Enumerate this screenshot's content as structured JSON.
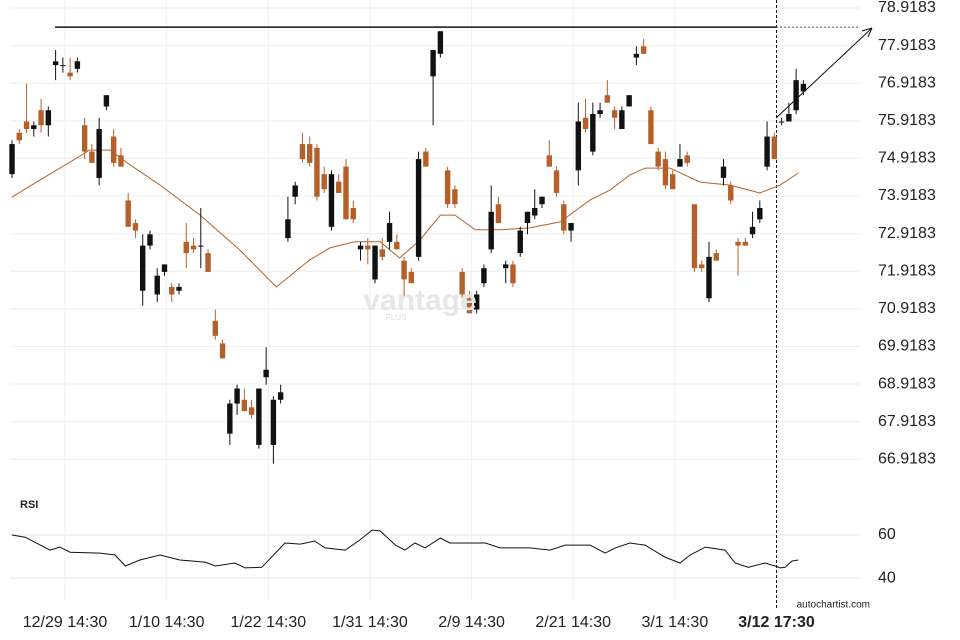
{
  "chart_data": {
    "type": "candlestick",
    "up_color": "#111111",
    "down_color": "#b5602a",
    "grid": true,
    "xlim": [
      -0.28,
      116.8
    ],
    "ylim": [
      65.915,
      79.131
    ],
    "yticks": [
      66.9183,
      67.9183,
      68.9183,
      69.9183,
      70.9183,
      71.9183,
      72.9183,
      73.9183,
      74.9183,
      75.9183,
      76.9183,
      77.9183,
      78.9183
    ],
    "xticks": [
      {
        "value": 7.3,
        "label": "12/29 14:30"
      },
      {
        "value": 21.3,
        "label": "1/10 14:30"
      },
      {
        "value": 35.3,
        "label": "1/22 14:30"
      },
      {
        "value": 49.3,
        "label": "1/31 14:30"
      },
      {
        "value": 63.3,
        "label": "2/9 14:30"
      },
      {
        "value": 77.3,
        "label": "2/21 14:30"
      },
      {
        "value": 91.3,
        "label": "3/1 14:30"
      },
      {
        "value": 105.3,
        "label": "3/12 17:30"
      }
    ],
    "open": [
      74.5,
      75.6,
      75.9,
      75.7,
      76.2,
      75.8,
      77.4,
      77.4,
      77.2,
      77.3,
      75.8,
      75.1,
      74.4,
      76.3,
      75.5,
      75.0,
      73.8,
      73.2,
      71.4,
      72.6,
      71.3,
      71.9,
      71.5,
      71.4,
      72.7,
      72.6,
      72.6,
      72.4,
      70.6,
      70.0,
      67.6,
      68.4,
      68.5,
      68.3,
      67.3,
      69.1,
      67.3,
      68.5,
      72.8,
      73.9,
      75.3,
      75.3,
      75.2,
      74.5,
      73.1,
      74.3,
      74.7,
      73.6,
      72.5,
      72.6,
      71.7,
      72.5,
      72.7,
      72.7,
      72.2,
      71.9,
      72.3,
      75.1,
      77.1,
      77.7,
      74.6,
      74.1,
      71.9,
      71.2,
      70.9,
      71.6,
      72.5,
      73.7,
      72.0,
      72.1,
      72.4,
      73.2,
      73.4,
      73.7,
      75.0,
      74.6,
      73.7,
      73.0,
      74.6,
      76.0,
      75.1,
      76.1,
      76.6,
      76.2,
      75.7,
      76.3,
      77.6,
      77.9,
      76.2,
      75.1,
      74.9,
      74.5,
      74.7,
      75.0,
      73.7,
      72.1,
      71.2,
      72.4,
      74.4,
      74.2,
      72.7,
      72.7,
      72.9,
      73.3,
      74.7,
      75.5,
      75.9,
      75.9,
      76.2,
      76.7
    ],
    "high": [
      75.4,
      75.7,
      76.9,
      75.9,
      76.5,
      76.3,
      77.8,
      77.6,
      77.6,
      77.6,
      76.0,
      75.3,
      76.0,
      76.6,
      75.7,
      75.2,
      74.0,
      73.3,
      72.9,
      73.0,
      72.0,
      72.1,
      71.6,
      71.6,
      73.2,
      72.8,
      73.6,
      72.5,
      70.9,
      70.1,
      68.5,
      68.9,
      68.8,
      68.5,
      68.8,
      69.9,
      68.6,
      68.9,
      73.9,
      74.3,
      75.6,
      75.5,
      75.3,
      74.7,
      74.6,
      74.5,
      74.9,
      73.8,
      72.7,
      72.8,
      72.6,
      72.8,
      73.5,
      72.9,
      72.3,
      72.0,
      75.1,
      75.2,
      77.8,
      78.3,
      74.7,
      74.2,
      72.0,
      71.4,
      71.4,
      72.1,
      74.2,
      73.9,
      72.2,
      72.2,
      73.1,
      73.5,
      74.1,
      73.9,
      75.4,
      74.7,
      73.8,
      73.2,
      76.4,
      76.5,
      76.4,
      76.4,
      77.0,
      76.3,
      76.3,
      76.6,
      77.9,
      78.1,
      76.3,
      75.2,
      75.1,
      74.6,
      75.3,
      75.1,
      73.7,
      72.2,
      72.7,
      72.5,
      74.9,
      74.3,
      72.8,
      72.8,
      73.5,
      73.8,
      75.9,
      75.6,
      76.0,
      76.4,
      77.3,
      77.0
    ],
    "low": [
      74.4,
      75.3,
      75.6,
      75.5,
      75.6,
      75.5,
      77.0,
      77.2,
      77.0,
      77.2,
      74.9,
      74.8,
      74.2,
      76.2,
      74.7,
      74.7,
      73.1,
      72.8,
      71.0,
      72.5,
      71.1,
      71.8,
      71.1,
      71.3,
      72.0,
      72.4,
      72.0,
      71.9,
      70.1,
      69.6,
      67.3,
      68.1,
      68.2,
      68.0,
      67.2,
      68.9,
      66.8,
      68.4,
      72.7,
      73.7,
      74.8,
      74.7,
      73.8,
      74.0,
      73.0,
      74.0,
      73.3,
      73.2,
      72.2,
      72.1,
      71.6,
      72.2,
      72.5,
      72.5,
      71.2,
      71.6,
      72.2,
      74.7,
      75.8,
      77.6,
      73.6,
      73.6,
      71.2,
      70.8,
      70.8,
      71.5,
      72.4,
      73.2,
      71.6,
      71.5,
      72.3,
      72.9,
      73.3,
      73.6,
      74.7,
      73.9,
      72.9,
      72.7,
      74.2,
      75.6,
      75.0,
      76.0,
      76.4,
      75.7,
      75.7,
      76.3,
      77.4,
      77.7,
      75.3,
      74.6,
      74.1,
      74.1,
      74.7,
      74.7,
      71.9,
      71.9,
      71.1,
      72.2,
      74.2,
      73.7,
      71.8,
      72.6,
      72.8,
      73.2,
      74.6,
      74.9,
      75.8,
      75.9,
      76.1,
      76.6
    ],
    "close": [
      75.3,
      75.4,
      75.7,
      75.8,
      75.8,
      76.2,
      77.5,
      77.4,
      77.1,
      77.5,
      75.1,
      74.8,
      75.7,
      76.6,
      74.8,
      74.7,
      73.1,
      73.0,
      72.6,
      72.9,
      71.8,
      72.1,
      71.3,
      71.5,
      72.4,
      72.5,
      72.6,
      71.9,
      70.2,
      69.6,
      68.4,
      68.8,
      68.2,
      68.1,
      68.8,
      69.3,
      68.5,
      68.7,
      73.3,
      74.2,
      74.9,
      74.8,
      73.9,
      74.1,
      74.5,
      74.0,
      73.3,
      73.3,
      72.6,
      72.5,
      72.6,
      72.3,
      73.2,
      72.5,
      71.7,
      71.6,
      74.9,
      74.7,
      77.8,
      78.3,
      73.7,
      73.7,
      71.3,
      70.8,
      71.3,
      72.0,
      73.5,
      73.2,
      72.1,
      71.6,
      73.0,
      73.5,
      73.6,
      73.9,
      74.7,
      74.0,
      73.0,
      73.2,
      75.9,
      75.7,
      76.1,
      76.2,
      76.4,
      76.0,
      76.2,
      76.6,
      77.7,
      77.7,
      75.3,
      74.7,
      74.2,
      74.1,
      74.9,
      74.8,
      72.0,
      72.0,
      72.3,
      72.2,
      74.7,
      73.8,
      72.6,
      72.6,
      73.1,
      73.6,
      75.5,
      74.9,
      75.9,
      76.1,
      77.0,
      76.9
    ],
    "moving_average": {
      "color": "#b5602a",
      "x": [
        0,
        3.9,
        8.0,
        10.7,
        13.5,
        16.3,
        20.4,
        25.9,
        31.4,
        36.4,
        41.0,
        43.8,
        47.2,
        50.7,
        53.4,
        56.2,
        59.0,
        61.0,
        63.8,
        67.2,
        71.3,
        75.5,
        79.6,
        82.4,
        85.1,
        87.2,
        90.6,
        94.8,
        98.9,
        103.0,
        105.8,
        108.3
      ],
      "values": [
        73.89,
        74.35,
        74.82,
        75.14,
        75.14,
        74.74,
        74.21,
        73.41,
        72.48,
        71.5,
        72.22,
        72.54,
        72.7,
        72.7,
        72.27,
        72.75,
        73.41,
        73.41,
        73.02,
        73.02,
        73.07,
        73.23,
        73.81,
        74.08,
        74.48,
        74.66,
        74.66,
        74.29,
        74.21,
        74.0,
        74.21,
        74.53
      ]
    },
    "resistance": 78.41,
    "rsi": {
      "label": "RSI",
      "color": "#111111",
      "ylim": [
        29.8,
        69.3
      ],
      "yticks": [
        40,
        60
      ],
      "x": [
        0,
        1.8,
        3.9,
        5.2,
        6.6,
        8.0,
        12.1,
        14.2,
        15.6,
        17.6,
        20.4,
        23.1,
        26.6,
        28.0,
        30.7,
        32.1,
        34.4,
        37.6,
        39.7,
        41.7,
        43.1,
        45.9,
        47.9,
        49.6,
        50.7,
        52.8,
        54.1,
        55.5,
        56.9,
        59.0,
        60.3,
        65.2,
        67.2,
        71.3,
        74.1,
        76.2,
        79.6,
        81.7,
        83.1,
        85.1,
        87.2,
        89.9,
        92.0,
        93.4,
        95.5,
        98.2,
        99.6,
        101.4,
        103.7,
        105.1,
        105.8,
        106.5,
        107.4,
        108.3
      ],
      "values": [
        60,
        59,
        55.3,
        53,
        54.4,
        52,
        51.6,
        50.7,
        45.6,
        48.4,
        50.7,
        48.4,
        47.4,
        45.6,
        47,
        44.7,
        45,
        56.3,
        55.8,
        57.2,
        54,
        53,
        57.7,
        62.3,
        61.9,
        55.3,
        53,
        56.3,
        54,
        58.6,
        56.3,
        56.3,
        54,
        54,
        53,
        55.3,
        55.3,
        51.6,
        54,
        56.3,
        55.3,
        49.8,
        47,
        50.7,
        54.4,
        53,
        47,
        45,
        47,
        45.6,
        44.7,
        45,
        47.9,
        48.4
      ]
    },
    "watermark": "vantage",
    "watermark_sub": "PLUS",
    "source": "autochartist.com"
  }
}
